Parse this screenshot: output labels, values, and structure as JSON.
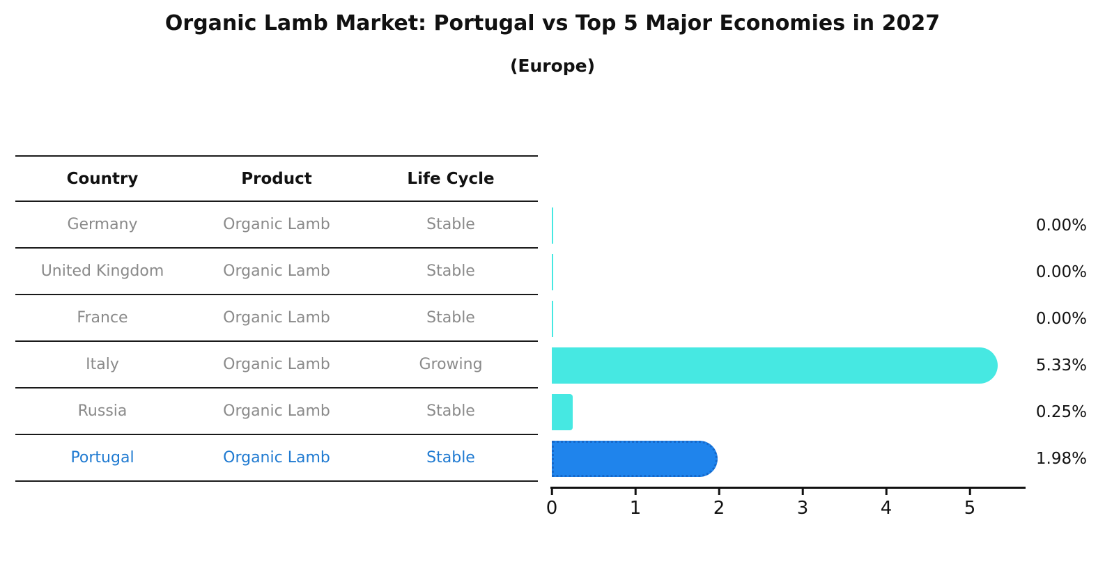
{
  "title": "Organic Lamb Market: Portugal vs Top 5 Major Economies in 2027",
  "subtitle": "(Europe)",
  "table": {
    "headers": [
      "Country",
      "Product",
      "Life Cycle"
    ],
    "rows": [
      {
        "country": "Germany",
        "product": "Organic Lamb",
        "life_cycle": "Stable",
        "highlighted": false
      },
      {
        "country": "United Kingdom",
        "product": "Organic Lamb",
        "life_cycle": "Stable",
        "highlighted": false
      },
      {
        "country": "France",
        "product": "Organic Lamb",
        "life_cycle": "Stable",
        "highlighted": false
      },
      {
        "country": "Italy",
        "product": "Organic Lamb",
        "life_cycle": "Growing",
        "highlighted": false
      },
      {
        "country": "Russia",
        "product": "Organic Lamb",
        "life_cycle": "Stable",
        "highlighted": false
      },
      {
        "country": "Portugal",
        "product": "Organic Lamb",
        "life_cycle": "Stable",
        "highlighted": true
      }
    ]
  },
  "chart_data": {
    "type": "bar",
    "orientation": "horizontal",
    "categories": [
      "Germany",
      "United Kingdom",
      "France",
      "Italy",
      "Russia",
      "Portugal"
    ],
    "values": [
      0.0,
      0.0,
      0.0,
      5.33,
      0.25,
      1.98
    ],
    "value_labels": [
      "0.00%",
      "0.00%",
      "0.00%",
      "5.33%",
      "0.25%",
      "1.98%"
    ],
    "xticks": [
      "0",
      "1",
      "2",
      "3",
      "4",
      "5"
    ],
    "xlim": [
      0,
      5.65
    ],
    "grid": false,
    "legend": false,
    "bar_colors": [
      "#46e8e2",
      "#46e8e2",
      "#46e8e2",
      "#46e8e2",
      "#46e8e2",
      "#1f84ec"
    ],
    "highlight_index": 5,
    "colors": {
      "bar_cyan": "#46e8e2",
      "bar_blue": "#1f84ec",
      "highlight_border": "#1668c9",
      "highlight_text": "#1f7ad1",
      "muted_text": "#8a8a8a",
      "axis": "#111111"
    }
  }
}
